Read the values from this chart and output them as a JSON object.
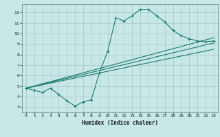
{
  "xlabel": "Humidex (Indice chaleur)",
  "ylabel": "",
  "line_color": "#1a7a6e",
  "bg_color": "#c8e8e8",
  "grid_color": "#b0d0d0",
  "xlim": [
    -0.5,
    23.5
  ],
  "ylim": [
    2.5,
    12.8
  ],
  "xticks": [
    0,
    1,
    2,
    3,
    4,
    5,
    6,
    7,
    8,
    9,
    10,
    11,
    12,
    13,
    14,
    15,
    16,
    17,
    18,
    19,
    20,
    21,
    22,
    23
  ],
  "yticks": [
    3,
    4,
    5,
    6,
    7,
    8,
    9,
    10,
    11,
    12
  ],
  "main_curve_x": [
    0,
    1,
    2,
    3,
    4,
    5,
    6,
    7,
    8,
    9,
    10,
    11,
    12,
    13,
    14,
    15,
    16,
    17,
    18,
    19,
    20,
    21,
    22,
    23
  ],
  "main_curve_y": [
    4.8,
    4.6,
    4.4,
    4.8,
    4.2,
    3.6,
    3.1,
    3.5,
    3.7,
    6.3,
    8.3,
    11.5,
    11.2,
    11.7,
    12.3,
    12.3,
    11.7,
    11.1,
    10.3,
    9.8,
    9.5,
    9.3,
    9.2,
    9.3
  ],
  "line1_x": [
    0,
    23
  ],
  "line1_y": [
    4.8,
    9.6
  ],
  "line2_x": [
    0,
    23
  ],
  "line2_y": [
    4.8,
    9.1
  ],
  "line3_x": [
    0,
    23
  ],
  "line3_y": [
    4.8,
    8.5
  ]
}
